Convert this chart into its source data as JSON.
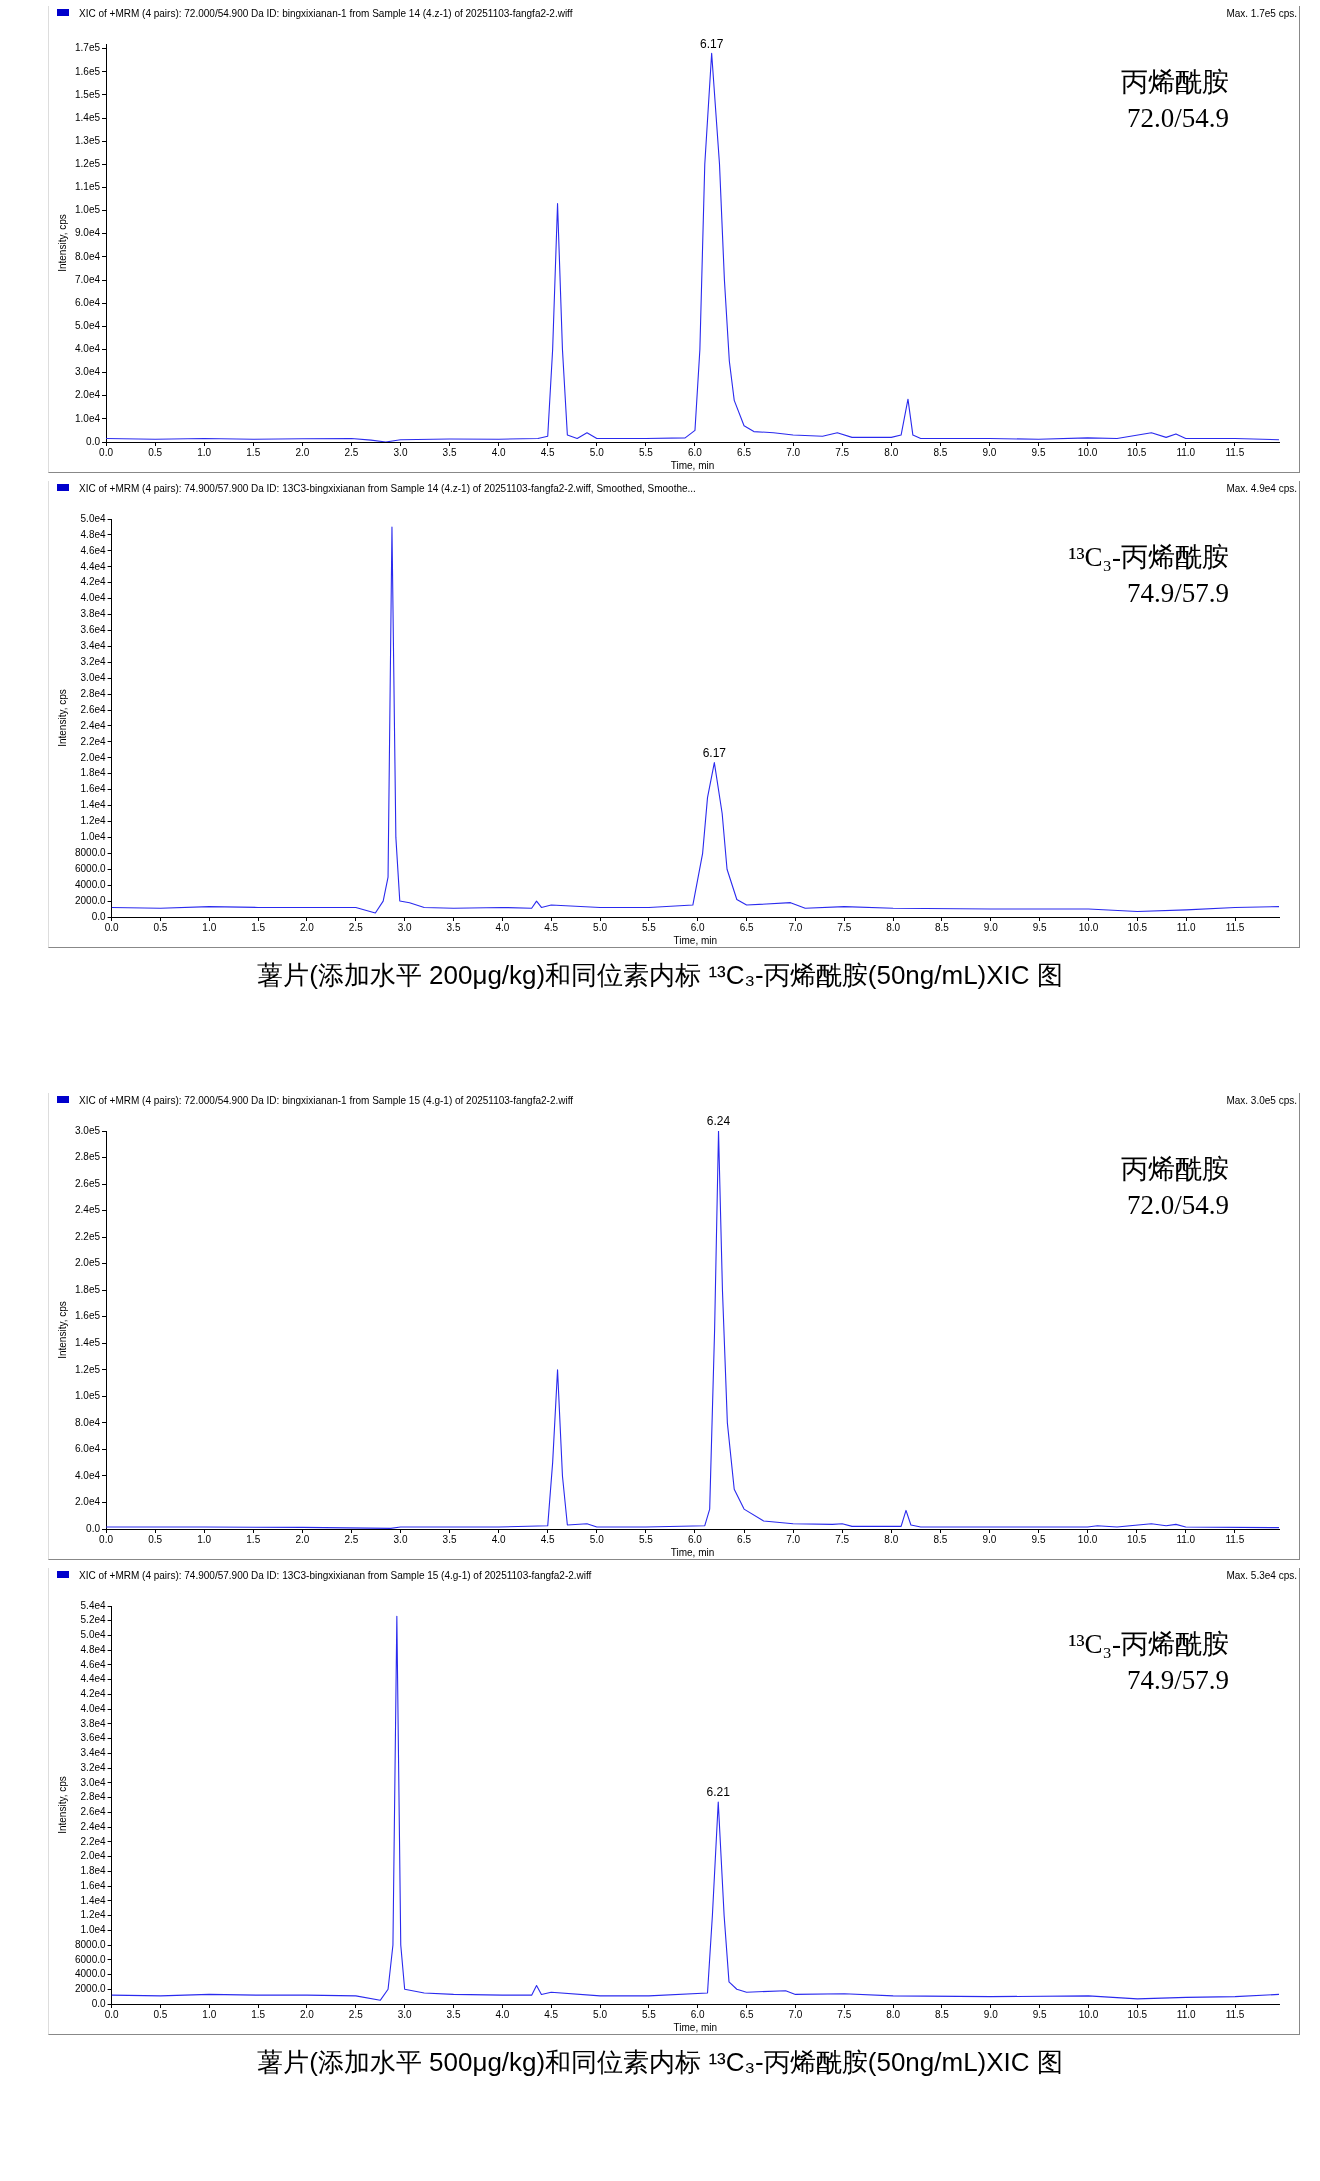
{
  "chart_data": [
    {
      "type": "line",
      "title": "XIC of +MRM (4 pairs): 72.000/54.900 Da ID: bingxixianan-1 from Sample 14 (4.z-1) of 20251103-fangfa2-2.wiff",
      "xlabel": "Time, min",
      "ylabel": "Intensity, cps",
      "annotations": [
        "Max. 1.7e5 cps.",
        "丙烯酰胺",
        "72.0/54.9",
        {
          "text": "6.17",
          "x": 6.17,
          "y": 168000
        }
      ],
      "x": [
        0,
        0.5,
        1.0,
        1.5,
        2.0,
        2.5,
        2.7,
        2.85,
        3.0,
        3.5,
        4.0,
        4.4,
        4.5,
        4.55,
        4.6,
        4.65,
        4.7,
        4.8,
        4.9,
        5.0,
        5.5,
        5.9,
        6.0,
        6.05,
        6.1,
        6.17,
        6.25,
        6.3,
        6.35,
        6.4,
        6.5,
        6.6,
        6.8,
        7.0,
        7.3,
        7.45,
        7.6,
        8.0,
        8.1,
        8.17,
        8.22,
        8.3,
        9.0,
        9.5,
        10.0,
        10.3,
        10.65,
        10.8,
        10.9,
        11.0,
        11.5,
        11.95
      ],
      "series": [
        {
          "color": "#2a2aee",
          "values": [
            1500,
            1200,
            1500,
            1200,
            1400,
            1500,
            800,
            0,
            1000,
            1300,
            1200,
            1500,
            2500,
            40000,
            103000,
            40000,
            3000,
            1500,
            4000,
            1500,
            1500,
            1800,
            5000,
            40000,
            120000,
            168000,
            120000,
            70000,
            35000,
            18000,
            7000,
            4500,
            4000,
            3000,
            2500,
            4000,
            2000,
            2000,
            3000,
            18500,
            3000,
            1500,
            1500,
            1200,
            1800,
            1500,
            4000,
            2000,
            3500,
            1500,
            1500,
            1000
          ]
        }
      ],
      "xlim": [
        0,
        11.95
      ],
      "xticks": [
        {
          "value": 0,
          "label": "0.0"
        },
        {
          "value": 0.5,
          "label": "0.5"
        },
        {
          "value": 1,
          "label": "1.0"
        },
        {
          "value": 1.5,
          "label": "1.5"
        },
        {
          "value": 2,
          "label": "2.0"
        },
        {
          "value": 2.5,
          "label": "2.5"
        },
        {
          "value": 3,
          "label": "3.0"
        },
        {
          "value": 3.5,
          "label": "3.5"
        },
        {
          "value": 4,
          "label": "4.0"
        },
        {
          "value": 4.5,
          "label": "4.5"
        },
        {
          "value": 5,
          "label": "5.0"
        },
        {
          "value": 5.5,
          "label": "5.5"
        },
        {
          "value": 6,
          "label": "6.0"
        },
        {
          "value": 6.5,
          "label": "6.5"
        },
        {
          "value": 7,
          "label": "7.0"
        },
        {
          "value": 7.5,
          "label": "7.5"
        },
        {
          "value": 8,
          "label": "8.0"
        },
        {
          "value": 8.5,
          "label": "8.5"
        },
        {
          "value": 9,
          "label": "9.0"
        },
        {
          "value": 9.5,
          "label": "9.5"
        },
        {
          "value": 10,
          "label": "10.0"
        },
        {
          "value": 10.5,
          "label": "10.5"
        },
        {
          "value": 11,
          "label": "11.0"
        },
        {
          "value": 11.5,
          "label": "11.5"
        }
      ],
      "ylim": [
        0,
        172000
      ],
      "yticks": [
        {
          "value": 0,
          "label": "0.0"
        },
        {
          "value": 10000,
          "label": "1.0e4"
        },
        {
          "value": 20000,
          "label": "2.0e4"
        },
        {
          "value": 30000,
          "label": "3.0e4"
        },
        {
          "value": 40000,
          "label": "4.0e4"
        },
        {
          "value": 50000,
          "label": "5.0e4"
        },
        {
          "value": 60000,
          "label": "6.0e4"
        },
        {
          "value": 70000,
          "label": "7.0e4"
        },
        {
          "value": 80000,
          "label": "8.0e4"
        },
        {
          "value": 90000,
          "label": "9.0e4"
        },
        {
          "value": 100000,
          "label": "1.0e5"
        },
        {
          "value": 110000,
          "label": "1.1e5"
        },
        {
          "value": 120000,
          "label": "1.2e5"
        },
        {
          "value": 130000,
          "label": "1.3e5"
        },
        {
          "value": 140000,
          "label": "1.4e5"
        },
        {
          "value": 150000,
          "label": "1.5e5"
        },
        {
          "value": 160000,
          "label": "1.6e5"
        },
        {
          "value": 170000,
          "label": "1.7e5"
        }
      ]
    },
    {
      "type": "line",
      "title": "XIC of +MRM (4 pairs): 74.900/57.900 Da ID: 13C3-bingxixianan from Sample 14 (4.z-1) of 20251103-fangfa2-2.wiff, Smoothed, Smoothe...",
      "xlabel": "Time, min",
      "ylabel": "Intensity, cps",
      "annotations": [
        "Max. 4.9e4 cps.",
        "¹³C₃-丙烯酰胺",
        "74.9/57.9",
        "薯片(添加水平 200μg/kg)和同位素内标 ¹³C₃-丙烯酰胺(50ng/mL)XIC 图",
        {
          "text": "6.17",
          "x": 6.17,
          "y": 19400
        }
      ],
      "x": [
        0,
        0.5,
        1.0,
        1.5,
        2.0,
        2.5,
        2.7,
        2.78,
        2.83,
        2.87,
        2.91,
        2.95,
        3.05,
        3.2,
        3.5,
        4.0,
        4.3,
        4.35,
        4.4,
        4.5,
        5.0,
        5.5,
        5.95,
        6.05,
        6.1,
        6.17,
        6.25,
        6.3,
        6.4,
        6.5,
        6.95,
        7.1,
        7.5,
        8.0,
        9.0,
        10.0,
        10.5,
        11.0,
        11.5,
        11.95
      ],
      "series": [
        {
          "color": "#2a2aee",
          "values": [
            1200,
            1100,
            1300,
            1200,
            1200,
            1200,
            500,
            2000,
            5000,
            49000,
            10000,
            2000,
            1800,
            1200,
            1100,
            1200,
            1100,
            2000,
            1200,
            1500,
            1200,
            1200,
            1500,
            8000,
            15000,
            19400,
            13000,
            6000,
            2200,
            1500,
            1800,
            1100,
            1300,
            1100,
            1000,
            1000,
            700,
            900,
            1200,
            1300
          ]
        }
      ],
      "xlim": [
        0,
        11.95
      ],
      "xticks": [
        {
          "value": 0,
          "label": "0.0"
        },
        {
          "value": 0.5,
          "label": "0.5"
        },
        {
          "value": 1,
          "label": "1.0"
        },
        {
          "value": 1.5,
          "label": "1.5"
        },
        {
          "value": 2,
          "label": "2.0"
        },
        {
          "value": 2.5,
          "label": "2.5"
        },
        {
          "value": 3,
          "label": "3.0"
        },
        {
          "value": 3.5,
          "label": "3.5"
        },
        {
          "value": 4,
          "label": "4.0"
        },
        {
          "value": 4.5,
          "label": "4.5"
        },
        {
          "value": 5,
          "label": "5.0"
        },
        {
          "value": 5.5,
          "label": "5.5"
        },
        {
          "value": 6,
          "label": "6.0"
        },
        {
          "value": 6.5,
          "label": "6.5"
        },
        {
          "value": 7,
          "label": "7.0"
        },
        {
          "value": 7.5,
          "label": "7.5"
        },
        {
          "value": 8,
          "label": "8.0"
        },
        {
          "value": 8.5,
          "label": "8.5"
        },
        {
          "value": 9,
          "label": "9.0"
        },
        {
          "value": 9.5,
          "label": "9.5"
        },
        {
          "value": 10,
          "label": "10.0"
        },
        {
          "value": 10.5,
          "label": "10.5"
        },
        {
          "value": 11,
          "label": "11.0"
        },
        {
          "value": 11.5,
          "label": "11.5"
        }
      ],
      "ylim": [
        0,
        50000
      ],
      "yticks": [
        {
          "value": 0,
          "label": "0.0"
        },
        {
          "value": 2000,
          "label": "2000.0"
        },
        {
          "value": 4000,
          "label": "4000.0"
        },
        {
          "value": 6000,
          "label": "6000.0"
        },
        {
          "value": 8000,
          "label": "8000.0"
        },
        {
          "value": 10000,
          "label": "1.0e4"
        },
        {
          "value": 12000,
          "label": "1.2e4"
        },
        {
          "value": 14000,
          "label": "1.4e4"
        },
        {
          "value": 16000,
          "label": "1.6e4"
        },
        {
          "value": 18000,
          "label": "1.8e4"
        },
        {
          "value": 20000,
          "label": "2.0e4"
        },
        {
          "value": 22000,
          "label": "2.2e4"
        },
        {
          "value": 24000,
          "label": "2.4e4"
        },
        {
          "value": 26000,
          "label": "2.6e4"
        },
        {
          "value": 28000,
          "label": "2.8e4"
        },
        {
          "value": 30000,
          "label": "3.0e4"
        },
        {
          "value": 32000,
          "label": "3.2e4"
        },
        {
          "value": 34000,
          "label": "3.4e4"
        },
        {
          "value": 36000,
          "label": "3.6e4"
        },
        {
          "value": 38000,
          "label": "3.8e4"
        },
        {
          "value": 40000,
          "label": "4.0e4"
        },
        {
          "value": 42000,
          "label": "4.2e4"
        },
        {
          "value": 44000,
          "label": "4.4e4"
        },
        {
          "value": 46000,
          "label": "4.6e4"
        },
        {
          "value": 48000,
          "label": "4.8e4"
        },
        {
          "value": 50000,
          "label": "5.0e4"
        }
      ]
    },
    {
      "type": "line",
      "title": "XIC of +MRM (4 pairs): 72.000/54.900 Da ID: bingxixianan-1 from Sample 15 (4.g-1) of 20251103-fangfa2-2.wiff",
      "xlabel": "Time, min",
      "ylabel": "Intensity, cps",
      "annotations": [
        "Max. 3.0e5 cps.",
        "丙烯酰胺",
        "72.0/54.9",
        {
          "text": "6.24",
          "x": 6.24,
          "y": 300000
        }
      ],
      "x": [
        0,
        1,
        2,
        2.9,
        3.0,
        4,
        4.5,
        4.55,
        4.6,
        4.65,
        4.7,
        4.9,
        5.0,
        5.5,
        6.1,
        6.15,
        6.2,
        6.24,
        6.28,
        6.33,
        6.4,
        6.5,
        6.7,
        7.0,
        7.4,
        7.5,
        7.6,
        8.1,
        8.15,
        8.2,
        8.3,
        9,
        10,
        10.1,
        10.3,
        10.65,
        10.8,
        10.9,
        11,
        11.95
      ],
      "series": [
        {
          "color": "#2a2aee",
          "values": [
            1500,
            1500,
            1200,
            500,
            1500,
            1500,
            2500,
            50000,
            120000,
            40000,
            3000,
            4000,
            1500,
            1500,
            2500,
            15000,
            150000,
            300000,
            180000,
            80000,
            30000,
            15000,
            6000,
            4000,
            3500,
            4000,
            2000,
            2000,
            14000,
            3000,
            1500,
            1500,
            1500,
            2500,
            1500,
            4000,
            2500,
            3500,
            1500,
            1000
          ]
        }
      ],
      "xlim": [
        0,
        11.95
      ],
      "xticks": [
        {
          "value": 0,
          "label": "0.0"
        },
        {
          "value": 0.5,
          "label": "0.5"
        },
        {
          "value": 1,
          "label": "1.0"
        },
        {
          "value": 1.5,
          "label": "1.5"
        },
        {
          "value": 2,
          "label": "2.0"
        },
        {
          "value": 2.5,
          "label": "2.5"
        },
        {
          "value": 3,
          "label": "3.0"
        },
        {
          "value": 3.5,
          "label": "3.5"
        },
        {
          "value": 4,
          "label": "4.0"
        },
        {
          "value": 4.5,
          "label": "4.5"
        },
        {
          "value": 5,
          "label": "5.0"
        },
        {
          "value": 5.5,
          "label": "5.5"
        },
        {
          "value": 6,
          "label": "6.0"
        },
        {
          "value": 6.5,
          "label": "6.5"
        },
        {
          "value": 7,
          "label": "7.0"
        },
        {
          "value": 7.5,
          "label": "7.5"
        },
        {
          "value": 8,
          "label": "8.0"
        },
        {
          "value": 8.5,
          "label": "8.5"
        },
        {
          "value": 9,
          "label": "9.0"
        },
        {
          "value": 9.5,
          "label": "9.5"
        },
        {
          "value": 10,
          "label": "10.0"
        },
        {
          "value": 10.5,
          "label": "10.5"
        },
        {
          "value": 11,
          "label": "11.0"
        },
        {
          "value": 11.5,
          "label": "11.5"
        }
      ],
      "ylim": [
        0,
        300000
      ],
      "yticks": [
        {
          "value": 0,
          "label": "0.0"
        },
        {
          "value": 20000,
          "label": "2.0e4"
        },
        {
          "value": 40000,
          "label": "4.0e4"
        },
        {
          "value": 60000,
          "label": "6.0e4"
        },
        {
          "value": 80000,
          "label": "8.0e4"
        },
        {
          "value": 100000,
          "label": "1.0e5"
        },
        {
          "value": 120000,
          "label": "1.2e5"
        },
        {
          "value": 140000,
          "label": "1.4e5"
        },
        {
          "value": 160000,
          "label": "1.6e5"
        },
        {
          "value": 180000,
          "label": "1.8e5"
        },
        {
          "value": 200000,
          "label": "2.0e5"
        },
        {
          "value": 220000,
          "label": "2.2e5"
        },
        {
          "value": 240000,
          "label": "2.4e5"
        },
        {
          "value": 260000,
          "label": "2.6e5"
        },
        {
          "value": 280000,
          "label": "2.8e5"
        },
        {
          "value": 300000,
          "label": "3.0e5"
        }
      ]
    },
    {
      "type": "line",
      "title": "XIC of +MRM (4 pairs): 74.900/57.900 Da ID: 13C3-bingxixianan from Sample 15 (4.g-1) of 20251103-fangfa2-2.wiff",
      "xlabel": "Time, min",
      "ylabel": "Intensity, cps",
      "annotations": [
        "Max. 5.3e4 cps.",
        "¹³C₃-丙烯酰胺",
        "74.9/57.9",
        "薯片(添加水平 500μg/kg)和同位素内标 ¹³C₃-丙烯酰胺(50ng/mL)XIC 图",
        {
          "text": "6.21",
          "x": 6.21,
          "y": 27400
        }
      ],
      "x": [
        0,
        0.5,
        1.0,
        1.5,
        2.0,
        2.5,
        2.75,
        2.83,
        2.88,
        2.92,
        2.96,
        3.0,
        3.2,
        3.5,
        4.0,
        4.3,
        4.35,
        4.4,
        4.5,
        5.0,
        5.5,
        6.1,
        6.15,
        6.21,
        6.27,
        6.32,
        6.4,
        6.5,
        6.9,
        7.0,
        7.5,
        8.0,
        9.0,
        10.0,
        10.5,
        11.0,
        11.5,
        11.95
      ],
      "series": [
        {
          "color": "#2a2aee",
          "values": [
            1200,
            1100,
            1300,
            1200,
            1200,
            1100,
            500,
            2000,
            8000,
            52600,
            8000,
            2000,
            1500,
            1300,
            1200,
            1200,
            2500,
            1300,
            1600,
            1100,
            1100,
            1500,
            12000,
            27400,
            12000,
            3000,
            2000,
            1600,
            1800,
            1300,
            1400,
            1100,
            1000,
            1100,
            700,
            900,
            1000,
            1300
          ]
        }
      ],
      "xlim": [
        0,
        11.95
      ],
      "xticks": [
        {
          "value": 0,
          "label": "0.0"
        },
        {
          "value": 0.5,
          "label": "0.5"
        },
        {
          "value": 1,
          "label": "1.0"
        },
        {
          "value": 1.5,
          "label": "1.5"
        },
        {
          "value": 2,
          "label": "2.0"
        },
        {
          "value": 2.5,
          "label": "2.5"
        },
        {
          "value": 3,
          "label": "3.0"
        },
        {
          "value": 3.5,
          "label": "3.5"
        },
        {
          "value": 4,
          "label": "4.0"
        },
        {
          "value": 4.5,
          "label": "4.5"
        },
        {
          "value": 5,
          "label": "5.0"
        },
        {
          "value": 5.5,
          "label": "5.5"
        },
        {
          "value": 6,
          "label": "6.0"
        },
        {
          "value": 6.5,
          "label": "6.5"
        },
        {
          "value": 7,
          "label": "7.0"
        },
        {
          "value": 7.5,
          "label": "7.5"
        },
        {
          "value": 8,
          "label": "8.0"
        },
        {
          "value": 8.5,
          "label": "8.5"
        },
        {
          "value": 9,
          "label": "9.0"
        },
        {
          "value": 9.5,
          "label": "9.5"
        },
        {
          "value": 10,
          "label": "10.0"
        },
        {
          "value": 10.5,
          "label": "10.5"
        },
        {
          "value": 11,
          "label": "11.0"
        },
        {
          "value": 11.5,
          "label": "11.5"
        }
      ],
      "ylim": [
        0,
        54000
      ],
      "yticks": [
        {
          "value": 0,
          "label": "0.0"
        },
        {
          "value": 2000,
          "label": "2000.0"
        },
        {
          "value": 4000,
          "label": "4000.0"
        },
        {
          "value": 6000,
          "label": "6000.0"
        },
        {
          "value": 8000,
          "label": "8000.0"
        },
        {
          "value": 10000,
          "label": "1.0e4"
        },
        {
          "value": 12000,
          "label": "1.2e4"
        },
        {
          "value": 14000,
          "label": "1.4e4"
        },
        {
          "value": 16000,
          "label": "1.6e4"
        },
        {
          "value": 18000,
          "label": "1.8e4"
        },
        {
          "value": 20000,
          "label": "2.0e4"
        },
        {
          "value": 22000,
          "label": "2.2e4"
        },
        {
          "value": 24000,
          "label": "2.4e4"
        },
        {
          "value": 26000,
          "label": "2.6e4"
        },
        {
          "value": 28000,
          "label": "2.8e4"
        },
        {
          "value": 30000,
          "label": "3.0e4"
        },
        {
          "value": 32000,
          "label": "3.2e4"
        },
        {
          "value": 34000,
          "label": "3.4e4"
        },
        {
          "value": 36000,
          "label": "3.6e4"
        },
        {
          "value": 38000,
          "label": "3.8e4"
        },
        {
          "value": 40000,
          "label": "4.0e4"
        },
        {
          "value": 42000,
          "label": "4.2e4"
        },
        {
          "value": 44000,
          "label": "4.4e4"
        },
        {
          "value": 46000,
          "label": "4.6e4"
        },
        {
          "value": 48000,
          "label": "4.8e4"
        },
        {
          "value": 50000,
          "label": "5.0e4"
        },
        {
          "value": 52000,
          "label": "5.2e4"
        },
        {
          "value": 54000,
          "label": "5.4e4"
        }
      ]
    }
  ]
}
